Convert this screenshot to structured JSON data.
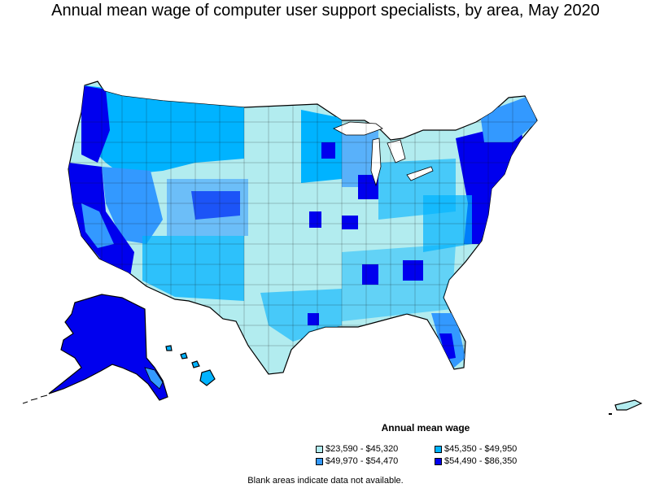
{
  "title": "Annual mean wage of computer user support specialists, by area, May 2020",
  "legend": {
    "title": "Annual mean wage",
    "items": [
      {
        "label": "$23,590 - $45,320",
        "color": "#b2ecef"
      },
      {
        "label": "$45,350 - $49,950",
        "color": "#00b3ff"
      },
      {
        "label": "$49,970 - $54,470",
        "color": "#3399ff"
      },
      {
        "label": "$54,490 - $86,350",
        "color": "#0000ee"
      }
    ]
  },
  "footnote": "Blank areas indicate data not available.",
  "colors": {
    "border": "#000000",
    "background": "#ffffff"
  }
}
